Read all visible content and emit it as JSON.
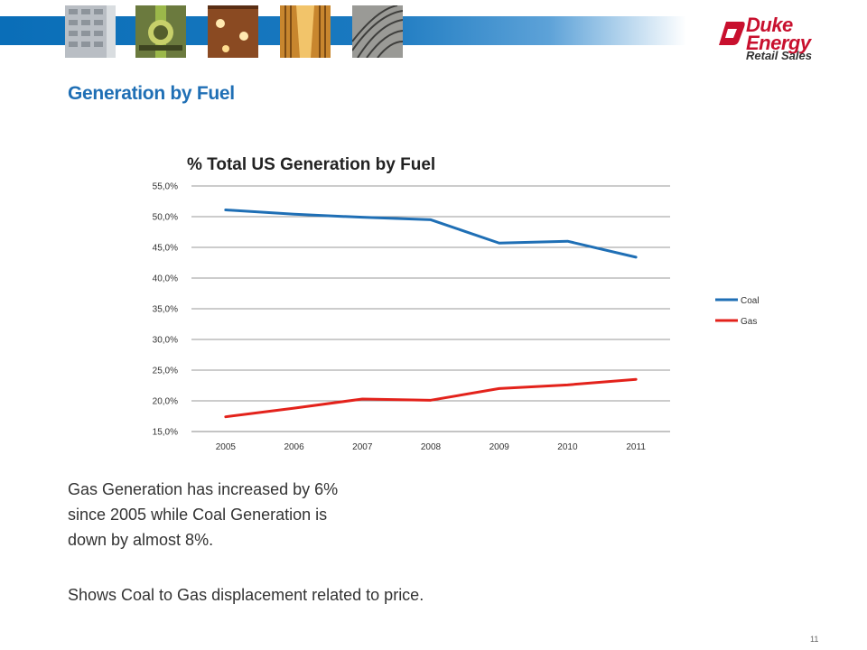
{
  "header": {
    "logo": {
      "brand": "Duke Energy",
      "sub": "Retail Sales",
      "brand_color": "#c8102e"
    },
    "banner_color": "#0a6eb8"
  },
  "page_title": "Generation by Fuel",
  "chart_data": {
    "type": "line",
    "title": "% Total US Generation by Fuel",
    "xlabel": "",
    "ylabel": "",
    "categories": [
      "2005",
      "2006",
      "2007",
      "2008",
      "2009",
      "2010",
      "2011"
    ],
    "ylim": [
      15,
      55
    ],
    "y_ticks": [
      "15,0%",
      "20,0%",
      "25,0%",
      "30,0%",
      "35,0%",
      "40,0%",
      "45,0%",
      "50,0%",
      "55,0%"
    ],
    "grid": true,
    "legend_position": "right",
    "series": [
      {
        "name": "Coal",
        "color": "#1f6fb5",
        "values": [
          51.1,
          50.4,
          49.9,
          49.5,
          45.7,
          46.0,
          43.4
        ]
      },
      {
        "name": "Gas",
        "color": "#e3221b",
        "values": [
          17.4,
          18.8,
          20.3,
          20.1,
          22.0,
          22.6,
          23.5
        ]
      }
    ]
  },
  "text": {
    "line1": "Gas Generation has increased by 6%",
    "line2": "since 2005 while Coal Generation is",
    "line3": "down by almost 8%.",
    "line4": "Shows Coal to Gas displacement related to price."
  },
  "slide_number": "11"
}
